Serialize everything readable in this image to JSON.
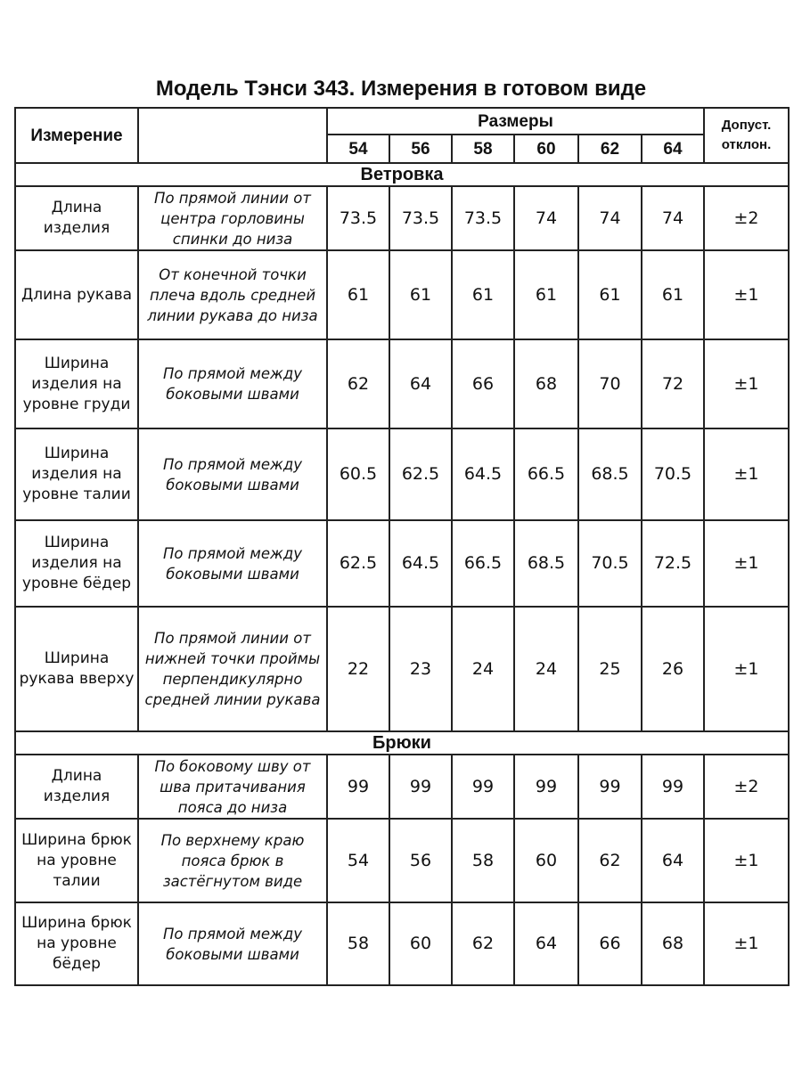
{
  "title": "Модель Тэнси 343. Измерения в готовом виде",
  "header": {
    "measurement": "Измерение",
    "sizes_label": "Размеры",
    "sizes": [
      "54",
      "56",
      "58",
      "60",
      "62",
      "64"
    ],
    "tolerance": "Допуст. отклон."
  },
  "sections": [
    {
      "name": "Ветровка",
      "rows": [
        {
          "name": "Длина изделия",
          "desc": "По прямой линии от центра горловины спинки до низа",
          "values": [
            "73.5",
            "73.5",
            "73.5",
            "74",
            "74",
            "74"
          ],
          "tol": "±2"
        },
        {
          "name": "Длина рукава",
          "desc": "От конечной точки плеча вдоль средней линии рукава до низа",
          "values": [
            "61",
            "61",
            "61",
            "61",
            "61",
            "61"
          ],
          "tol": "±1"
        },
        {
          "name": "Ширина изделия на уровне груди",
          "desc": "По прямой между боковыми швами",
          "values": [
            "62",
            "64",
            "66",
            "68",
            "70",
            "72"
          ],
          "tol": "±1"
        },
        {
          "name": "Ширина изделия на уровне талии",
          "desc": "По прямой между боковыми швами",
          "values": [
            "60.5",
            "62.5",
            "64.5",
            "66.5",
            "68.5",
            "70.5"
          ],
          "tol": "±1"
        },
        {
          "name": "Ширина изделия на уровне бёдер",
          "desc": "По прямой между боковыми швами",
          "values": [
            "62.5",
            "64.5",
            "66.5",
            "68.5",
            "70.5",
            "72.5"
          ],
          "tol": "±1"
        },
        {
          "name": "Ширина рукава вверху",
          "desc": "По прямой линии от нижней точки проймы перпендикулярно средней линии рукава",
          "values": [
            "22",
            "23",
            "24",
            "24",
            "25",
            "26"
          ],
          "tol": "±1"
        }
      ]
    },
    {
      "name": "Брюки",
      "rows": [
        {
          "name": "Длина изделия",
          "desc": "По боковому шву от шва притачивания пояса до низа",
          "values": [
            "99",
            "99",
            "99",
            "99",
            "99",
            "99"
          ],
          "tol": "±2"
        },
        {
          "name": "Ширина брюк на уровне талии",
          "desc": "По верхнему краю пояса брюк в застёгнутом виде",
          "values": [
            "54",
            "56",
            "58",
            "60",
            "62",
            "64"
          ],
          "tol": "±1"
        },
        {
          "name": "Ширина брюк на уровне бёдер",
          "desc": "По прямой между боковыми швами",
          "values": [
            "58",
            "60",
            "62",
            "64",
            "66",
            "68"
          ],
          "tol": "±1"
        }
      ]
    }
  ]
}
